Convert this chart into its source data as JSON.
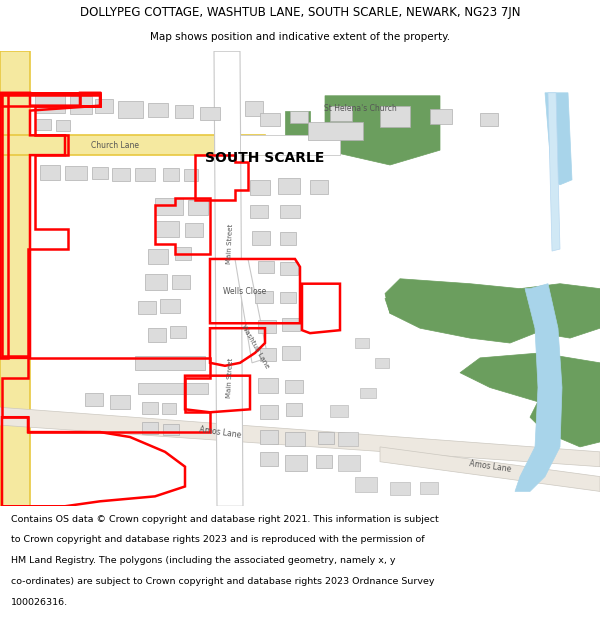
{
  "title_line1": "DOLLYPEG COTTAGE, WASHTUB LANE, SOUTH SCARLE, NEWARK, NG23 7JN",
  "title_line2": "Map shows position and indicative extent of the property.",
  "footer_text_lines": [
    "Contains OS data © Crown copyright and database right 2021. This information is subject",
    "to Crown copyright and database rights 2023 and is reproduced with the permission of",
    "HM Land Registry. The polygons (including the associated geometry, namely x, y",
    "co-ordinates) are subject to Crown copyright and database rights 2023 Ordnance Survey",
    "100026316."
  ],
  "map_bg": "#ffffff",
  "road_white": "#ffffff",
  "road_grey_outline": "#c8c8c8",
  "road_light_outline": "#d8d4cf",
  "yellow_fill": "#f5e9a0",
  "yellow_outline": "#e8c840",
  "orange_fill": "#f5a030",
  "building_fill": "#dcdcdc",
  "building_outline": "#b0b0b0",
  "green_fill": "#6b9e5e",
  "blue_fill": "#a8d4ea",
  "light_blue": "#c8e8f5",
  "red_color": "#ff0000",
  "text_dark": "#4a4a4a",
  "title_fontsize": 8.5,
  "subtitle_fontsize": 7.5,
  "footer_fontsize": 6.8
}
